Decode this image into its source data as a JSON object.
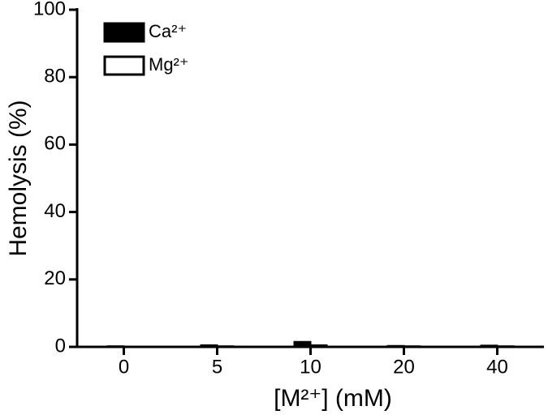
{
  "chart_data": {
    "type": "bar",
    "y_label": "Hemolysis (%)",
    "x_label": "[M²⁺] (mM)",
    "categories": [
      "0",
      "5",
      "10",
      "20",
      "40"
    ],
    "series": [
      {
        "name": "Ca²⁺",
        "color": "#000000",
        "values": [
          0.2,
          0.5,
          1.5,
          0.3,
          0.4
        ]
      },
      {
        "name": "Mg²⁺",
        "color": "#ffffff",
        "values": [
          0.1,
          0.2,
          0.5,
          0.2,
          0.2
        ]
      }
    ],
    "ylim": [
      0,
      100
    ],
    "yticks": [
      0,
      20,
      40,
      60,
      80,
      100
    ],
    "grid": false
  }
}
